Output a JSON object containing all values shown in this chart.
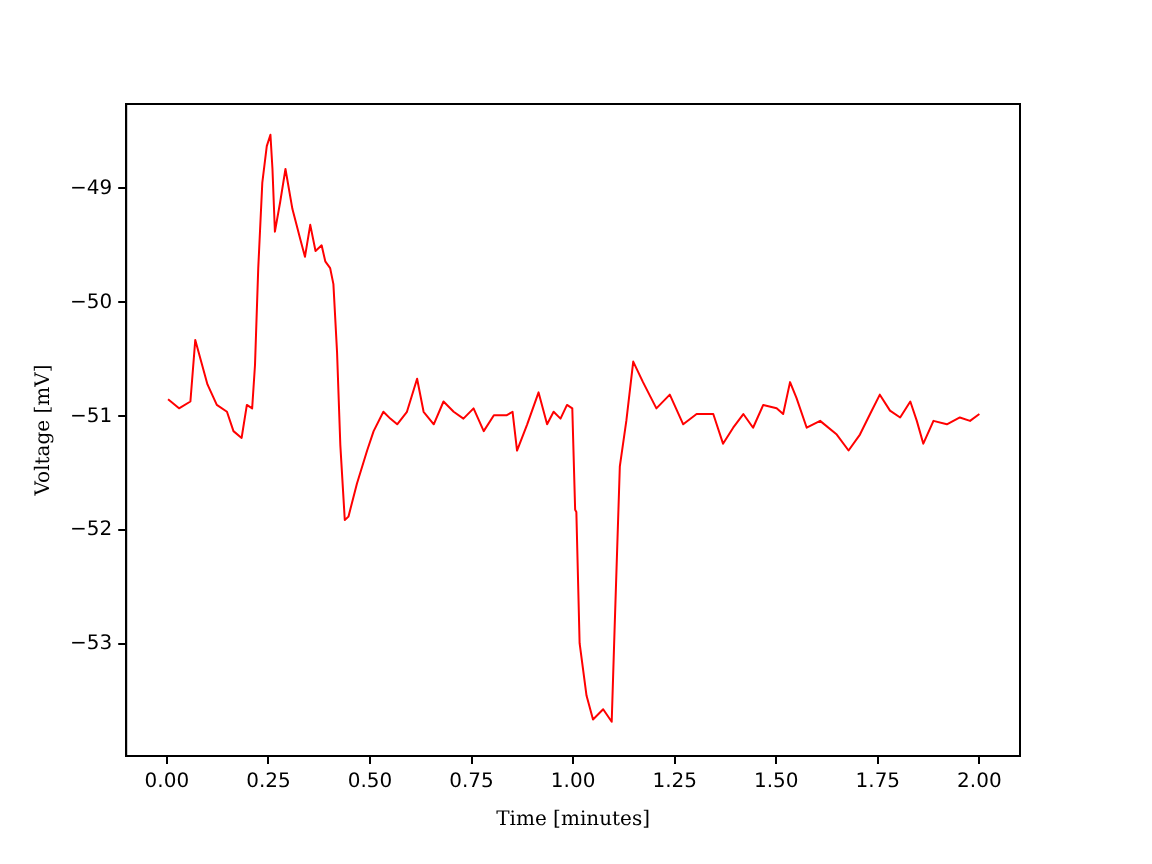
{
  "chart_data": {
    "type": "line",
    "xlabel": "Time [minutes]",
    "ylabel": "Voltage [mV]",
    "xlim": [
      -0.1,
      2.1
    ],
    "xticks": [
      {
        "value": 0,
        "label": "0.00"
      },
      {
        "value": 0.25,
        "label": "0.25"
      },
      {
        "value": 0.5,
        "label": "0.50"
      },
      {
        "value": 0.75,
        "label": "0.75"
      },
      {
        "value": 1,
        "label": "1.00"
      },
      {
        "value": 1.25,
        "label": "1.25"
      },
      {
        "value": 1.5,
        "label": "1.50"
      },
      {
        "value": 1.75,
        "label": "1.75"
      },
      {
        "value": 2,
        "label": "2.00"
      }
    ],
    "ylim": [
      -53.98,
      -48.26
    ],
    "yticks": [
      {
        "value": -53,
        "label": "−53"
      },
      {
        "value": -52,
        "label": "−52"
      },
      {
        "value": -51,
        "label": "−51"
      },
      {
        "value": -50,
        "label": "−50"
      },
      {
        "value": -49,
        "label": "−49"
      }
    ],
    "grid": false,
    "legend": false,
    "marker": "none",
    "line_style": "solid",
    "series": [
      {
        "color": "#ff0000",
        "x": [
          0.003,
          0.03,
          0.058,
          0.07,
          0.1,
          0.123,
          0.148,
          0.164,
          0.184,
          0.197,
          0.21,
          0.217,
          0.225,
          0.235,
          0.246,
          0.255,
          0.26,
          0.266,
          0.279,
          0.292,
          0.309,
          0.328,
          0.34,
          0.353,
          0.366,
          0.381,
          0.39,
          0.402,
          0.41,
          0.419,
          0.427,
          0.438,
          0.447,
          0.468,
          0.493,
          0.509,
          0.533,
          0.55,
          0.567,
          0.591,
          0.616,
          0.632,
          0.657,
          0.681,
          0.706,
          0.73,
          0.755,
          0.78,
          0.805,
          0.837,
          0.851,
          0.862,
          0.887,
          0.915,
          0.936,
          0.952,
          0.969,
          0.985,
          0.998,
          1.005,
          1.008,
          1.016,
          1.033,
          1.049,
          1.074,
          1.095,
          1.102,
          1.115,
          1.131,
          1.148,
          1.172,
          1.205,
          1.238,
          1.271,
          1.304,
          1.345,
          1.369,
          1.394,
          1.419,
          1.443,
          1.468,
          1.501,
          1.517,
          1.534,
          1.55,
          1.575,
          1.608,
          1.649,
          1.678,
          1.706,
          1.731,
          1.755,
          1.78,
          1.805,
          1.83,
          1.846,
          1.862,
          1.887,
          1.92,
          1.952,
          1.977,
          2.0
        ],
        "values": [
          -50.85,
          -50.93,
          -50.87,
          -50.33,
          -50.72,
          -50.9,
          -50.96,
          -51.13,
          -51.19,
          -50.9,
          -50.93,
          -50.55,
          -49.7,
          -48.95,
          -48.63,
          -48.53,
          -48.83,
          -49.38,
          -49.12,
          -48.83,
          -49.18,
          -49.44,
          -49.6,
          -49.32,
          -49.55,
          -49.5,
          -49.64,
          -49.7,
          -49.84,
          -50.44,
          -51.25,
          -51.91,
          -51.88,
          -51.59,
          -51.3,
          -51.13,
          -50.96,
          -51.02,
          -51.07,
          -50.96,
          -50.67,
          -50.96,
          -51.07,
          -50.87,
          -50.96,
          -51.02,
          -50.93,
          -51.13,
          -50.99,
          -50.99,
          -50.96,
          -51.3,
          -51.07,
          -50.79,
          -51.07,
          -50.96,
          -51.02,
          -50.9,
          -50.93,
          -51.82,
          -51.84,
          -52.99,
          -53.45,
          -53.66,
          -53.57,
          -53.68,
          -52.88,
          -51.44,
          -51.04,
          -50.52,
          -50.7,
          -50.93,
          -50.81,
          -51.07,
          -50.98,
          -50.98,
          -51.24,
          -51.1,
          -50.98,
          -51.1,
          -50.9,
          -50.93,
          -50.98,
          -50.7,
          -50.84,
          -51.1,
          -51.04,
          -51.16,
          -51.3,
          -51.16,
          -50.98,
          -50.81,
          -50.95,
          -51.01,
          -50.87,
          -51.04,
          -51.24,
          -51.04,
          -51.07,
          -51.01,
          -51.04,
          -50.98
        ]
      }
    ]
  }
}
